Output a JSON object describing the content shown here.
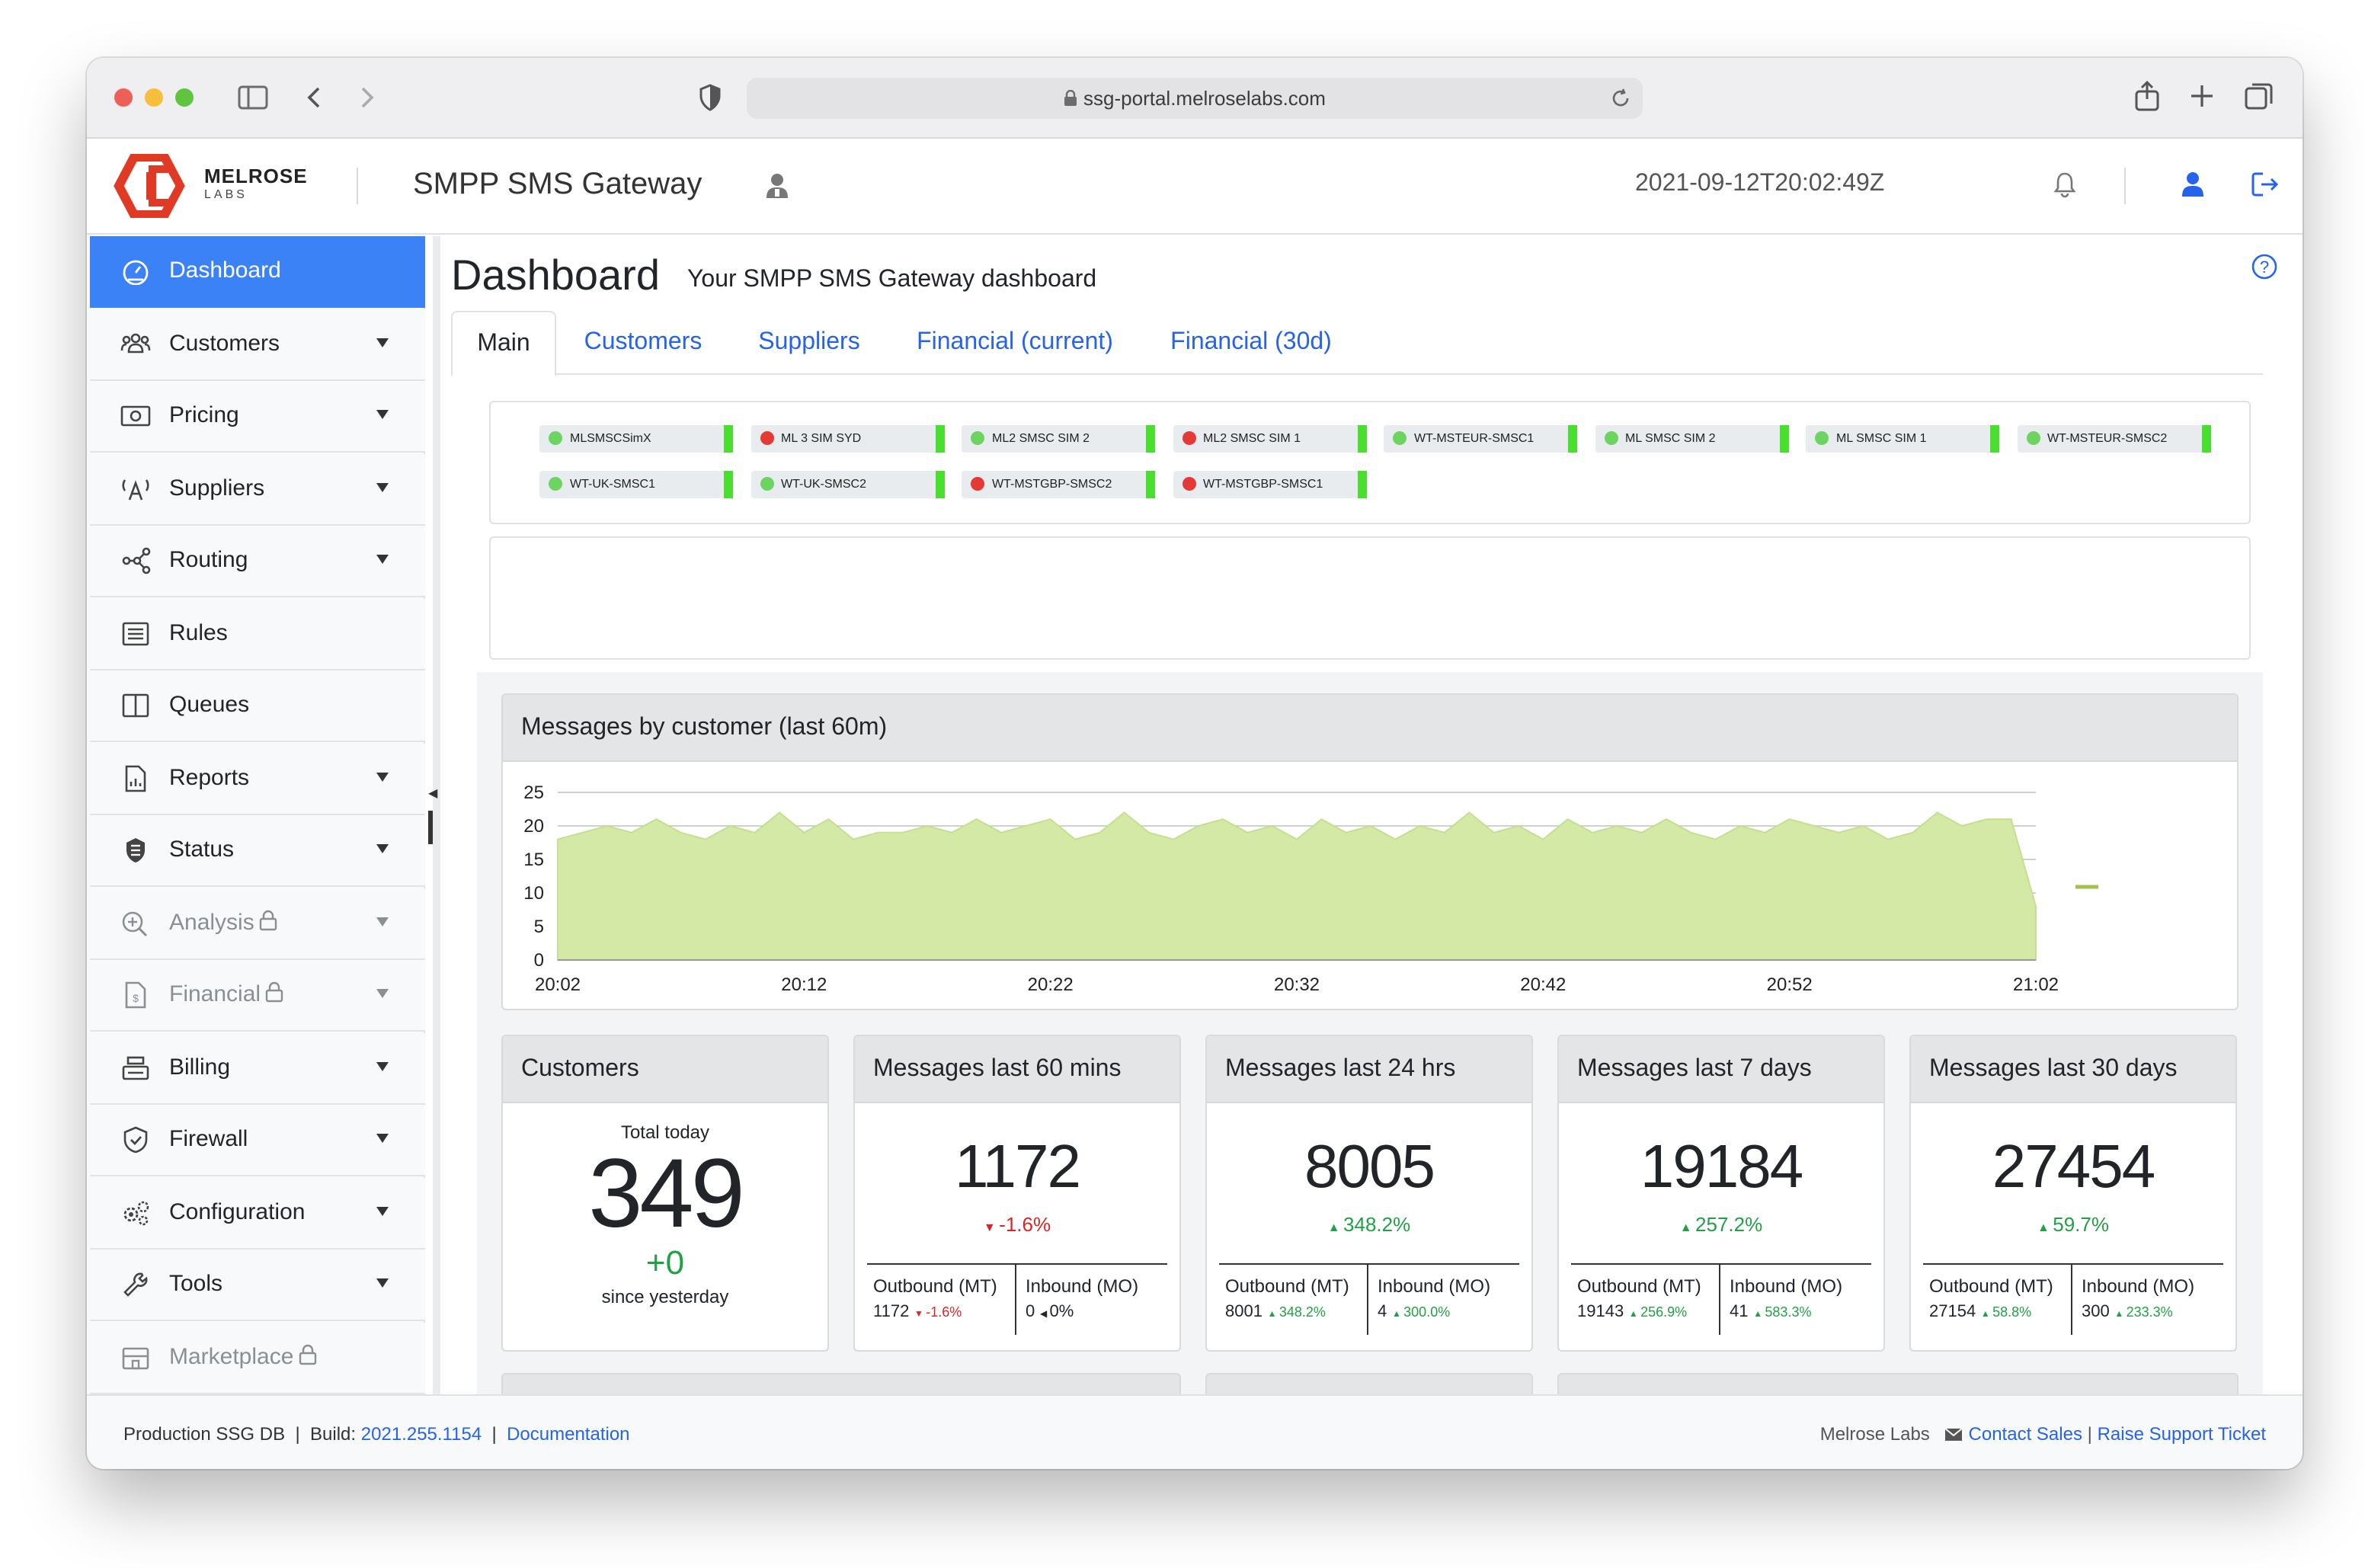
{
  "browser": {
    "url": "ssg-portal.melroselabs.com"
  },
  "header": {
    "logo_name": "MELROSE",
    "logo_sub": "LABS",
    "app_title": "SMPP SMS Gateway",
    "timestamp": "2021-09-12T20:02:49Z"
  },
  "sidebar": {
    "items": [
      {
        "label": "Dashboard"
      },
      {
        "label": "Customers"
      },
      {
        "label": "Pricing"
      },
      {
        "label": "Suppliers"
      },
      {
        "label": "Routing"
      },
      {
        "label": "Rules"
      },
      {
        "label": "Queues"
      },
      {
        "label": "Reports"
      },
      {
        "label": "Status"
      },
      {
        "label": "Analysis"
      },
      {
        "label": "Financial"
      },
      {
        "label": "Billing"
      },
      {
        "label": "Firewall"
      },
      {
        "label": "Configuration"
      },
      {
        "label": "Tools"
      },
      {
        "label": "Marketplace"
      }
    ]
  },
  "page": {
    "title": "Dashboard",
    "subtitle": "Your SMPP SMS Gateway dashboard"
  },
  "tabs": [
    {
      "label": "Main"
    },
    {
      "label": "Customers"
    },
    {
      "label": "Suppliers"
    },
    {
      "label": "Financial (current)"
    },
    {
      "label": "Financial (30d)"
    }
  ],
  "connections": [
    {
      "name": "MLSMSCSimX",
      "status": "up"
    },
    {
      "name": "ML 3 SIM SYD",
      "status": "down"
    },
    {
      "name": "ML2 SMSC SIM 2",
      "status": "up"
    },
    {
      "name": "ML2 SMSC SIM 1",
      "status": "down"
    },
    {
      "name": "WT-MSTEUR-SMSC1",
      "status": "up"
    },
    {
      "name": "ML SMSC SIM 2",
      "status": "up"
    },
    {
      "name": "ML SMSC SIM 1",
      "status": "up"
    },
    {
      "name": "WT-MSTEUR-SMSC2",
      "status": "up"
    },
    {
      "name": "WT-UK-SMSC1",
      "status": "up"
    },
    {
      "name": "WT-UK-SMSC2",
      "status": "up"
    },
    {
      "name": "WT-MSTGBP-SMSC2",
      "status": "down"
    },
    {
      "name": "WT-MSTGBP-SMSC1",
      "status": "down"
    }
  ],
  "colors": {
    "accent": "#3b82f6",
    "status_up": "#4ade30",
    "status_down": "#e53935",
    "area_fill": "#d4e9a6",
    "area_stroke": "#c5df8f"
  },
  "chart_data": {
    "type": "area",
    "title": "Messages by customer (last 60m)",
    "xlabel": "",
    "ylabel": "",
    "ylim": [
      0,
      25
    ],
    "yticks": [
      0,
      5,
      10,
      15,
      20,
      25
    ],
    "xtick_labels": [
      "20:02",
      "20:12",
      "20:22",
      "20:32",
      "20:42",
      "20:52",
      "21:02"
    ],
    "grid": true,
    "series": [
      {
        "values": [
          18,
          19,
          20,
          19,
          21,
          19,
          18,
          20,
          19,
          22,
          19,
          21,
          18,
          19,
          19,
          20,
          19,
          21,
          19,
          20,
          21,
          18,
          19,
          22,
          19,
          18,
          20,
          21,
          19,
          20,
          18,
          21,
          19,
          20,
          18,
          20,
          19,
          22,
          19,
          20,
          18,
          21,
          19,
          20,
          19,
          21,
          19,
          18,
          20,
          19,
          21,
          20,
          19,
          20,
          18,
          19,
          22,
          20,
          21,
          21,
          8
        ]
      }
    ]
  },
  "stats": {
    "customers": {
      "title": "Customers",
      "label": "Total today",
      "value": "349",
      "delta": "+0",
      "delta_label": "since yesterday"
    },
    "cards": [
      {
        "title": "Messages last 60 mins",
        "value": "1172",
        "change": "-1.6%",
        "dir": "down",
        "mt_label": "Outbound (MT)",
        "mt_value": "1172",
        "mt_change": "-1.6%",
        "mt_dir": "down",
        "mo_label": "Inbound (MO)",
        "mo_value": "0",
        "mo_change": "0%",
        "mo_dir": "flat"
      },
      {
        "title": "Messages last 24 hrs",
        "value": "8005",
        "change": "348.2%",
        "dir": "up",
        "mt_label": "Outbound (MT)",
        "mt_value": "8001",
        "mt_change": "348.2%",
        "mt_dir": "up",
        "mo_label": "Inbound (MO)",
        "mo_value": "4",
        "mo_change": "300.0%",
        "mo_dir": "up"
      },
      {
        "title": "Messages last 7 days",
        "value": "19184",
        "change": "257.2%",
        "dir": "up",
        "mt_label": "Outbound (MT)",
        "mt_value": "19143",
        "mt_change": "256.9%",
        "mt_dir": "up",
        "mo_label": "Inbound (MO)",
        "mo_value": "41",
        "mo_change": "583.3%",
        "mo_dir": "up"
      },
      {
        "title": "Messages last 30 days",
        "value": "27454",
        "change": "59.7%",
        "dir": "up",
        "mt_label": "Outbound (MT)",
        "mt_value": "27154",
        "mt_change": "58.8%",
        "mt_dir": "up",
        "mo_label": "Inbound (MO)",
        "mo_value": "300",
        "mo_change": "233.3%",
        "mo_dir": "up"
      }
    ]
  },
  "footer": {
    "db_label": "Production SSG DB",
    "build_label": "Build:",
    "build_value": "2021.255.1154",
    "docs_link": "Documentation",
    "company": "Melrose Labs",
    "contact_link": "Contact Sales",
    "support_link": "Raise Support Ticket"
  }
}
